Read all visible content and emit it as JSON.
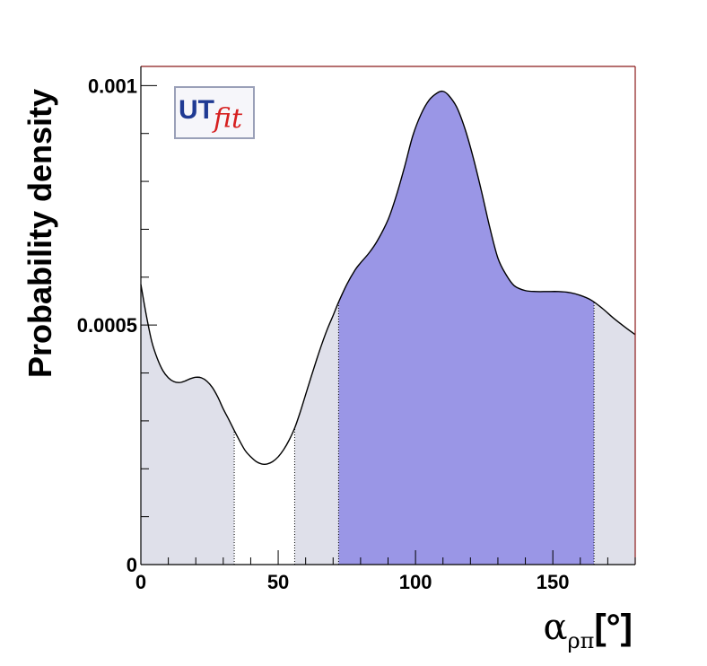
{
  "chart_data": {
    "type": "area",
    "title": "",
    "xlabel": {
      "symbol": "α",
      "subscript": "ρπ",
      "unit": "[°]"
    },
    "ylabel": "Probability density",
    "xlim": [
      0,
      180
    ],
    "ylim": [
      0,
      0.00104
    ],
    "x_ticks": [
      {
        "value": 0,
        "label": "0"
      },
      {
        "value": 50,
        "label": "50"
      },
      {
        "value": 100,
        "label": "100"
      },
      {
        "value": 150,
        "label": "150"
      }
    ],
    "y_ticks": [
      {
        "value": 0,
        "label": "0"
      },
      {
        "value": 0.0005,
        "label": "0.0005"
      },
      {
        "value": 0.001,
        "label": "0.001"
      }
    ],
    "curve": {
      "x": [
        0,
        2,
        4,
        6,
        8,
        10,
        12,
        14,
        16,
        18,
        20,
        22,
        24,
        26,
        28,
        30,
        32,
        34,
        36,
        38,
        40,
        42,
        44,
        46,
        48,
        50,
        52,
        54,
        56,
        58,
        60,
        62,
        64,
        66,
        68,
        70,
        72,
        75,
        78,
        80,
        83,
        86,
        90,
        93,
        96,
        99,
        102,
        105,
        108,
        110,
        112,
        115,
        118,
        121,
        124,
        127,
        130,
        133,
        136,
        140,
        144,
        148,
        152,
        156,
        160,
        164,
        168,
        172,
        176,
        180
      ],
      "y": [
        0.000585,
        0.00052,
        0.000465,
        0.00043,
        0.000405,
        0.00039,
        0.000382,
        0.00038,
        0.000383,
        0.000388,
        0.000391,
        0.00039,
        0.000383,
        0.00037,
        0.00035,
        0.000325,
        0.000303,
        0.00028,
        0.000258,
        0.000238,
        0.000225,
        0.000215,
        0.00021,
        0.00021,
        0.000215,
        0.000225,
        0.00024,
        0.00026,
        0.000285,
        0.000318,
        0.000355,
        0.000392,
        0.000428,
        0.000462,
        0.000493,
        0.00052,
        0.000548,
        0.000585,
        0.000615,
        0.00063,
        0.00065,
        0.000675,
        0.00072,
        0.00077,
        0.00083,
        0.000895,
        0.00094,
        0.00097,
        0.000985,
        0.000988,
        0.00098,
        0.000955,
        0.00091,
        0.00085,
        0.00078,
        0.000705,
        0.00064,
        0.000605,
        0.000582,
        0.000572,
        0.00057,
        0.00057,
        0.00057,
        0.000568,
        0.000562,
        0.000552,
        0.000535,
        0.000515,
        0.000497,
        0.00048
      ]
    },
    "bands": [
      {
        "x_range": [
          0,
          34
        ],
        "color": "#dfe0ea"
      },
      {
        "x_range": [
          56,
          72
        ],
        "color": "#dfe0ea"
      },
      {
        "x_range": [
          72,
          165
        ],
        "color": "#9a96e6"
      },
      {
        "x_range": [
          165,
          180
        ],
        "color": "#dfe0ea"
      }
    ],
    "logo": {
      "part1": "UT",
      "part2": "fit"
    },
    "colors": {
      "curve": "#000000",
      "high_prob_band": "#9a96e6",
      "low_prob_band": "#dfe0ea",
      "frame": "#000000",
      "frame_right_top": "#8b1a1a"
    }
  }
}
